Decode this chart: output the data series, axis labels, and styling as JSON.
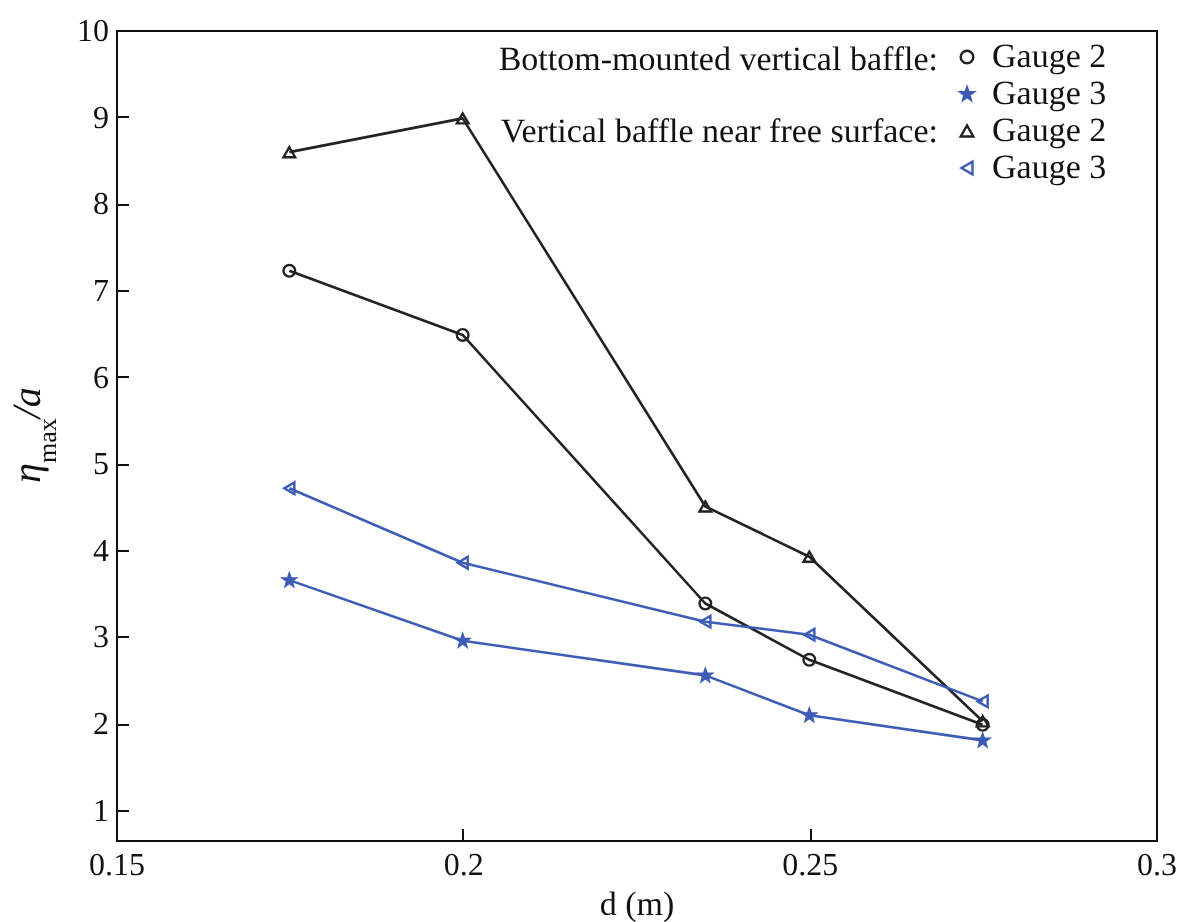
{
  "chart_data": {
    "type": "line",
    "xlabel": "d (m)",
    "ylabel": "η$_{max}$/a",
    "x": [
      0.175,
      0.2,
      0.235,
      0.25,
      0.275
    ],
    "series": [
      {
        "name": "Gauge 2",
        "color": "#222222",
        "marker": "circle",
        "values": [
          7.22,
          6.48,
          3.38,
          2.73,
          1.98
        ]
      },
      {
        "name": "Gauge 3",
        "color": "#3d5cb5",
        "marker": "star",
        "values": [
          3.65,
          2.95,
          2.55,
          2.09,
          1.8
        ]
      },
      {
        "name": "Gauge 2",
        "color": "#222222",
        "marker": "triangle",
        "values": [
          8.59,
          8.98,
          4.5,
          3.92,
          2.02
        ]
      },
      {
        "name": "Gauge 3",
        "color": "#3d5cb5",
        "marker": "triangle-left",
        "values": [
          4.71,
          3.85,
          3.17,
          3.02,
          2.25
        ]
      }
    ],
    "annotations": [
      "Bottom-mounted vertical baffle:",
      "Vertical baffle near free surface:"
    ],
    "xlim": [
      0.15,
      0.3
    ],
    "xticks": [
      0.15,
      0.2,
      0.25,
      0.3
    ],
    "ylim": [
      0.65,
      10
    ],
    "yticks": [
      1,
      2,
      3,
      4,
      5,
      6,
      7,
      8,
      9,
      10
    ],
    "grid": false,
    "legend": "top right",
    "line_style": "solid"
  }
}
